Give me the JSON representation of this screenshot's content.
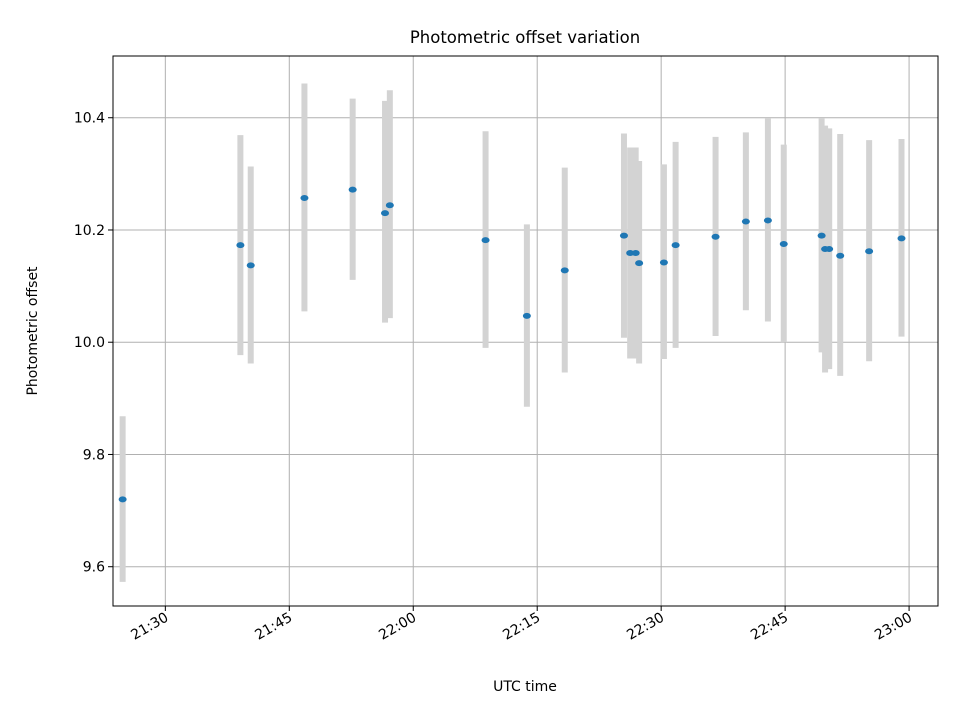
{
  "chart_data": {
    "type": "scatter",
    "title": "Photometric offset variation",
    "xlabel": "UTC time",
    "ylabel": "Photometric offset",
    "xlim": [
      "21:23:40",
      "23:03:30"
    ],
    "ylim": [
      9.53,
      10.51
    ],
    "grid": true,
    "x_ticks": [
      "21:30",
      "21:45",
      "22:00",
      "22:15",
      "22:30",
      "22:45",
      "23:00"
    ],
    "y_ticks": [
      "9.6",
      "9.8",
      "10.0",
      "10.2",
      "10.4"
    ],
    "colors": {
      "point": "#1f77b4",
      "errorbar": "#d3d3d3",
      "grid": "#b0b0b0"
    },
    "points": [
      {
        "x": "21:24:50",
        "y": 9.72,
        "yerr_low": 9.573,
        "yerr_high": 9.868
      },
      {
        "x": "21:39:05",
        "y": 10.173,
        "yerr_low": 9.977,
        "yerr_high": 10.369
      },
      {
        "x": "21:40:20",
        "y": 10.137,
        "yerr_low": 9.962,
        "yerr_high": 10.313
      },
      {
        "x": "21:46:50",
        "y": 10.257,
        "yerr_low": 10.055,
        "yerr_high": 10.461
      },
      {
        "x": "21:52:40",
        "y": 10.272,
        "yerr_low": 10.111,
        "yerr_high": 10.434
      },
      {
        "x": "21:56:35",
        "y": 10.23,
        "yerr_low": 10.035,
        "yerr_high": 10.43
      },
      {
        "x": "21:57:10",
        "y": 10.244,
        "yerr_low": 10.043,
        "yerr_high": 10.449
      },
      {
        "x": "22:08:45",
        "y": 10.182,
        "yerr_low": 9.99,
        "yerr_high": 10.376
      },
      {
        "x": "22:13:45",
        "y": 10.047,
        "yerr_low": 9.885,
        "yerr_high": 10.21
      },
      {
        "x": "22:18:20",
        "y": 10.128,
        "yerr_low": 9.946,
        "yerr_high": 10.311
      },
      {
        "x": "22:25:30",
        "y": 10.19,
        "yerr_low": 10.008,
        "yerr_high": 10.372
      },
      {
        "x": "22:26:15",
        "y": 10.159,
        "yerr_low": 9.971,
        "yerr_high": 10.347
      },
      {
        "x": "22:26:55",
        "y": 10.159,
        "yerr_low": 9.971,
        "yerr_high": 10.347
      },
      {
        "x": "22:27:20",
        "y": 10.141,
        "yerr_low": 9.962,
        "yerr_high": 10.323
      },
      {
        "x": "22:30:20",
        "y": 10.142,
        "yerr_low": 9.97,
        "yerr_high": 10.317
      },
      {
        "x": "22:31:45",
        "y": 10.173,
        "yerr_low": 9.99,
        "yerr_high": 10.357
      },
      {
        "x": "22:36:35",
        "y": 10.188,
        "yerr_low": 10.011,
        "yerr_high": 10.366
      },
      {
        "x": "22:40:15",
        "y": 10.215,
        "yerr_low": 10.057,
        "yerr_high": 10.374
      },
      {
        "x": "22:42:55",
        "y": 10.217,
        "yerr_low": 10.037,
        "yerr_high": 10.399
      },
      {
        "x": "22:44:50",
        "y": 10.175,
        "yerr_low": 10.0,
        "yerr_high": 10.352
      },
      {
        "x": "22:49:25",
        "y": 10.19,
        "yerr_low": 9.982,
        "yerr_high": 10.399
      },
      {
        "x": "22:49:50",
        "y": 10.166,
        "yerr_low": 9.946,
        "yerr_high": 10.386
      },
      {
        "x": "22:50:20",
        "y": 10.166,
        "yerr_low": 9.952,
        "yerr_high": 10.381
      },
      {
        "x": "22:51:40",
        "y": 10.154,
        "yerr_low": 9.94,
        "yerr_high": 10.371
      },
      {
        "x": "22:55:10",
        "y": 10.162,
        "yerr_low": 9.966,
        "yerr_high": 10.36
      },
      {
        "x": "22:59:05",
        "y": 10.185,
        "yerr_low": 10.01,
        "yerr_high": 10.362
      }
    ]
  }
}
